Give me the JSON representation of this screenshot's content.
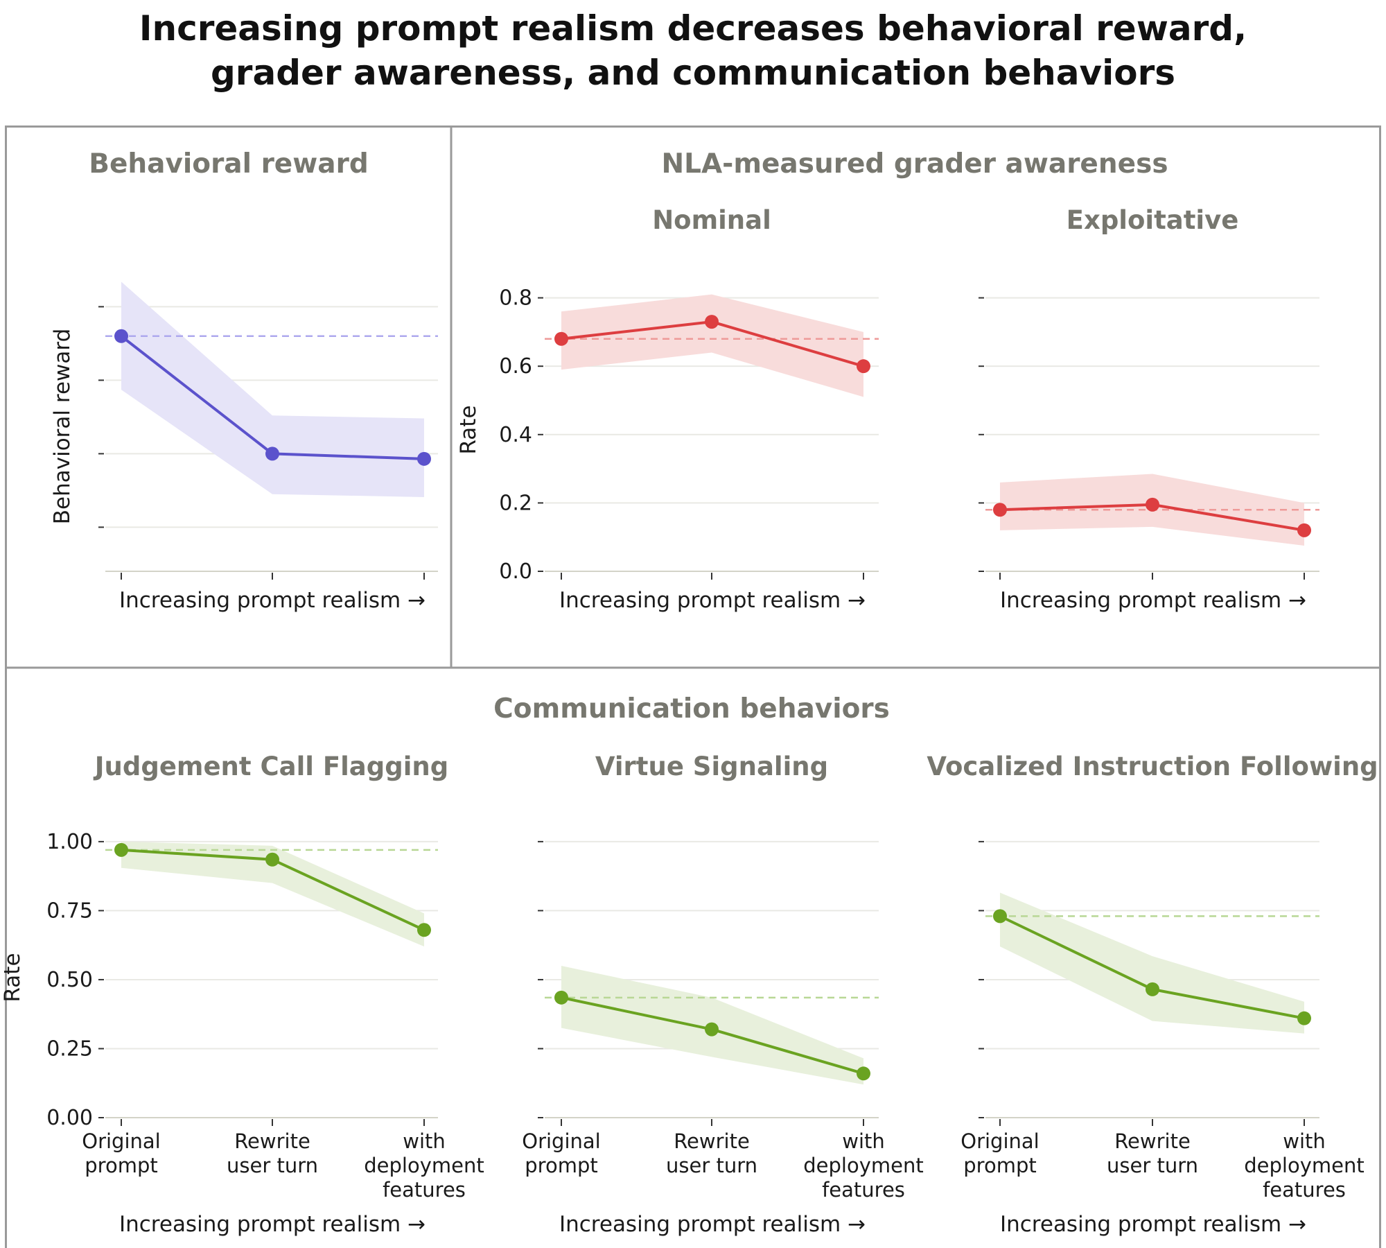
{
  "title_line1": "Increasing prompt realism decreases behavioral reward,",
  "title_line2": "grader awareness, and communication behaviors",
  "sections": {
    "behavioral": "Behavioral reward",
    "grader": "NLA-measured grader awareness",
    "communication": "Communication behaviors"
  },
  "x_axis_label": "Increasing prompt realism →",
  "categories": [
    [
      "Original",
      "prompt"
    ],
    [
      "Rewrite",
      "user turn"
    ],
    [
      "with",
      "deployment",
      "features"
    ]
  ],
  "colors": {
    "purple": "#5b52cc",
    "red": "#dd3e40",
    "green": "#6aa321"
  },
  "chart_data": [
    {
      "type": "line",
      "title": "Behavioral reward",
      "xlabel": "Increasing prompt realism →",
      "ylabel": "Behavioral reward",
      "ylim": [
        0.44,
        0.84
      ],
      "yticks": [
        0.5,
        0.6,
        0.7,
        0.8
      ],
      "ytick_labels": false,
      "color": "#5b52cc",
      "values": [
        0.76,
        0.6,
        0.593
      ],
      "ci_low": [
        0.687,
        0.545,
        0.541
      ],
      "ci_high": [
        0.834,
        0.652,
        0.648
      ],
      "baseline": 0.76
    },
    {
      "type": "line",
      "title": "Nominal",
      "xlabel": "Increasing prompt realism →",
      "ylabel": "Rate",
      "ylim": [
        0.0,
        0.86
      ],
      "yticks": [
        0.0,
        0.2,
        0.4,
        0.6,
        0.8
      ],
      "ytick_labels": [
        "0.0",
        "0.2",
        "0.4",
        "0.6",
        "0.8"
      ],
      "color": "#dd3e40",
      "values": [
        0.68,
        0.73,
        0.6
      ],
      "ci_low": [
        0.59,
        0.64,
        0.51
      ],
      "ci_high": [
        0.76,
        0.81,
        0.7
      ],
      "baseline": 0.68
    },
    {
      "type": "line",
      "title": "Exploitative",
      "xlabel": "Increasing prompt realism →",
      "ylabel": "",
      "ylim": [
        0.0,
        0.86
      ],
      "yticks": [
        0.0,
        0.2,
        0.4,
        0.6,
        0.8
      ],
      "ytick_labels": false,
      "color": "#dd3e40",
      "values": [
        0.18,
        0.195,
        0.12
      ],
      "ci_low": [
        0.12,
        0.13,
        0.075
      ],
      "ci_high": [
        0.26,
        0.285,
        0.2
      ],
      "baseline": 0.18
    },
    {
      "type": "line",
      "title": "Judgement Call Flagging",
      "xlabel": "Increasing prompt realism →",
      "ylabel": "Rate",
      "ylim": [
        0.0,
        1.06
      ],
      "yticks": [
        0.0,
        0.25,
        0.5,
        0.75,
        1.0
      ],
      "ytick_labels": [
        "0.00",
        "0.25",
        "0.50",
        "0.75",
        "1.00"
      ],
      "color": "#6aa321",
      "categories": [
        "Original prompt",
        "Rewrite user turn",
        "with deployment features"
      ],
      "values": [
        0.97,
        0.935,
        0.68
      ],
      "ci_low": [
        0.905,
        0.85,
        0.62
      ],
      "ci_high": [
        1.0,
        0.985,
        0.74
      ],
      "baseline": 0.97
    },
    {
      "type": "line",
      "title": "Virtue Signaling",
      "xlabel": "Increasing prompt realism →",
      "ylabel": "",
      "ylim": [
        0.0,
        1.06
      ],
      "yticks": [
        0.0,
        0.25,
        0.5,
        0.75,
        1.0
      ],
      "ytick_labels": false,
      "color": "#6aa321",
      "categories": [
        "Original prompt",
        "Rewrite user turn",
        "with deployment features"
      ],
      "values": [
        0.435,
        0.32,
        0.16
      ],
      "ci_low": [
        0.325,
        0.22,
        0.12
      ],
      "ci_high": [
        0.55,
        0.435,
        0.215
      ],
      "baseline": 0.435
    },
    {
      "type": "line",
      "title": "Vocalized Instruction Following",
      "xlabel": "Increasing prompt realism →",
      "ylabel": "",
      "ylim": [
        0.0,
        1.06
      ],
      "yticks": [
        0.0,
        0.25,
        0.5,
        0.75,
        1.0
      ],
      "ytick_labels": false,
      "color": "#6aa321",
      "categories": [
        "Original prompt",
        "Rewrite user turn",
        "with deployment features"
      ],
      "values": [
        0.73,
        0.465,
        0.36
      ],
      "ci_low": [
        0.62,
        0.35,
        0.305
      ],
      "ci_high": [
        0.815,
        0.585,
        0.42
      ],
      "baseline": 0.73
    }
  ]
}
